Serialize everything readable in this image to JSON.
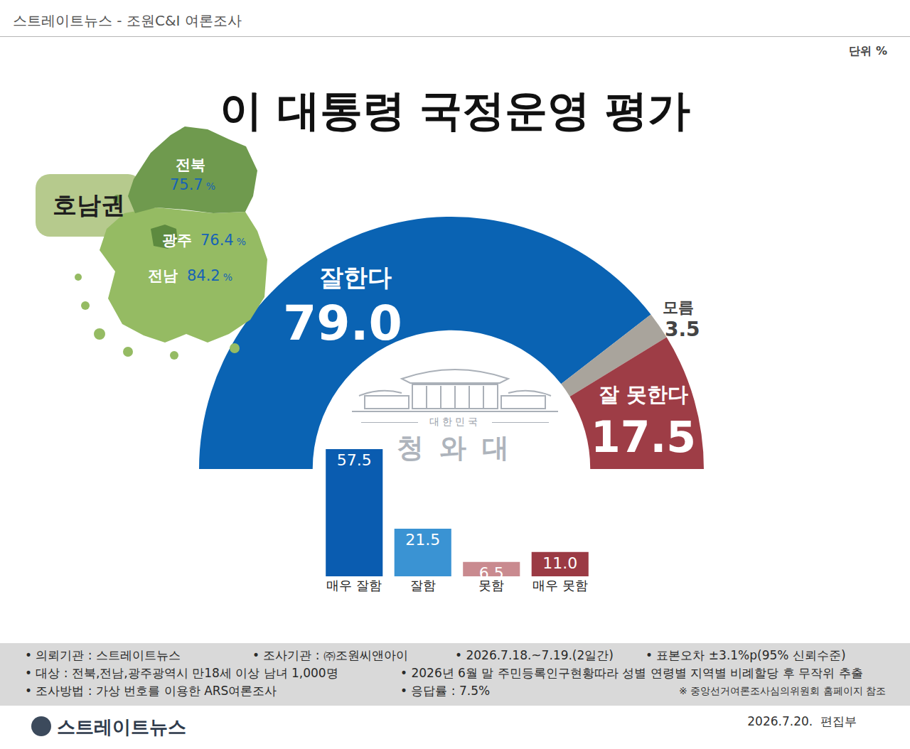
{
  "header": "스트레이트뉴스 - 조원C&I 여론조사",
  "unit_note": "단위 %",
  "chart_data": [
    {
      "type": "pie",
      "title": "이 대통령 국정운영 평가",
      "categories": [
        "잘한다",
        "모름",
        "잘 못한다"
      ],
      "values": [
        79.0,
        3.5,
        17.5
      ],
      "value_labels": [
        "79.0",
        "3.5",
        "17.5"
      ],
      "colors": [
        "#0a63b3",
        "#a9a49c",
        "#9e3d46"
      ],
      "data_labels": true
    },
    {
      "type": "bar",
      "categories": [
        "매우 잘함",
        "잘함",
        "못함",
        "매우 못함"
      ],
      "values": [
        57.5,
        21.5,
        6.5,
        11.0
      ],
      "value_labels": [
        "57.5",
        "21.5",
        "6.5",
        "11.0"
      ],
      "colors": [
        "#0a5cb0",
        "#3a93d3",
        "#c98a8f",
        "#9b3a44"
      ],
      "data_labels": true,
      "tick_labels": "x",
      "ylim": [
        0,
        57.5
      ]
    }
  ],
  "region": {
    "label": "호남권",
    "unit": "%",
    "areas": [
      {
        "name": "전북",
        "value": 75.7
      },
      {
        "name": "광주",
        "value": 76.4
      },
      {
        "name": "전남",
        "value": 84.2
      }
    ]
  },
  "emblem": {
    "caption": "대한민국",
    "name": "청와대"
  },
  "footer": {
    "rows": [
      [
        "• 의뢰기관 : 스트레이트뉴스",
        "• 조사기관 : ㈜조원씨앤아이",
        "• 2026.7.18.~7.19.(2일간)",
        "• 표본오차 ±3.1%p(95% 신뢰수준)"
      ],
      [
        "• 대상 : 전북,전남,광주광역시 만18세 이상 남녀 1,000명",
        "• 2026년 6월 말 주민등록인구현황따라 성별 연령별 지역별 비례할당 후 무작위 추출"
      ],
      [
        "• 조사방법 : 가상 번호를 이용한 ARS여론조사",
        "• 응답률 : 7.5%"
      ]
    ],
    "note": "※ 중앙선거여론조사심의위원회 홈페이지 참조"
  },
  "logo": "스트레이트뉴스",
  "date": "2026.7.20.  편집부"
}
